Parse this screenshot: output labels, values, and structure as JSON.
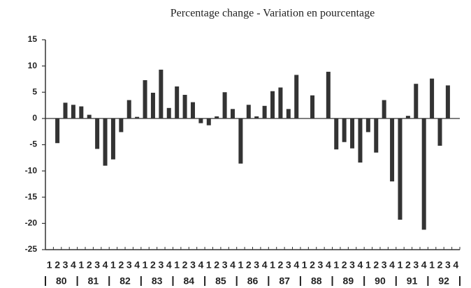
{
  "chart_data": {
    "type": "bar",
    "title": "Percentage  change - Variation en pourcentage",
    "categories": [
      "1",
      "2",
      "3",
      "4",
      "1",
      "2",
      "3",
      "4",
      "1",
      "2",
      "3",
      "4",
      "1",
      "2",
      "3",
      "4",
      "1",
      "2",
      "3",
      "4",
      "1",
      "2",
      "3",
      "4",
      "1",
      "2",
      "3",
      "4",
      "1",
      "2",
      "3",
      "4",
      "1",
      "2",
      "3",
      "4",
      "1",
      "2",
      "3",
      "4",
      "1",
      "2",
      "3",
      "4",
      "1",
      "2",
      "3",
      "4",
      "1",
      "2",
      "3",
      "4"
    ],
    "years": [
      "80",
      "81",
      "82",
      "83",
      "84",
      "85",
      "86",
      "87",
      "88",
      "89",
      "90",
      "91",
      "92"
    ],
    "values": [
      null,
      -4.7,
      3.0,
      2.6,
      2.3,
      0.7,
      -5.8,
      -9.0,
      -7.8,
      -2.6,
      3.5,
      0.3,
      7.3,
      4.9,
      9.3,
      2.0,
      6.1,
      4.5,
      3.1,
      -0.9,
      -1.3,
      0.4,
      5.0,
      1.8,
      -8.6,
      2.6,
      0.4,
      2.4,
      5.2,
      5.9,
      1.8,
      8.3,
      0,
      4.4,
      0,
      8.9,
      -5.9,
      -4.5,
      -5.7,
      -8.4,
      -2.6,
      -6.5,
      3.5,
      -12.0,
      -19.3,
      0.5,
      6.6,
      -21.2,
      7.6,
      -5.2,
      6.3,
      null
    ],
    "color": "#333333",
    "ylim": [
      -25,
      15
    ],
    "yticks": [
      15,
      10,
      5,
      0,
      -5,
      -10,
      -15,
      -20,
      -25
    ]
  }
}
